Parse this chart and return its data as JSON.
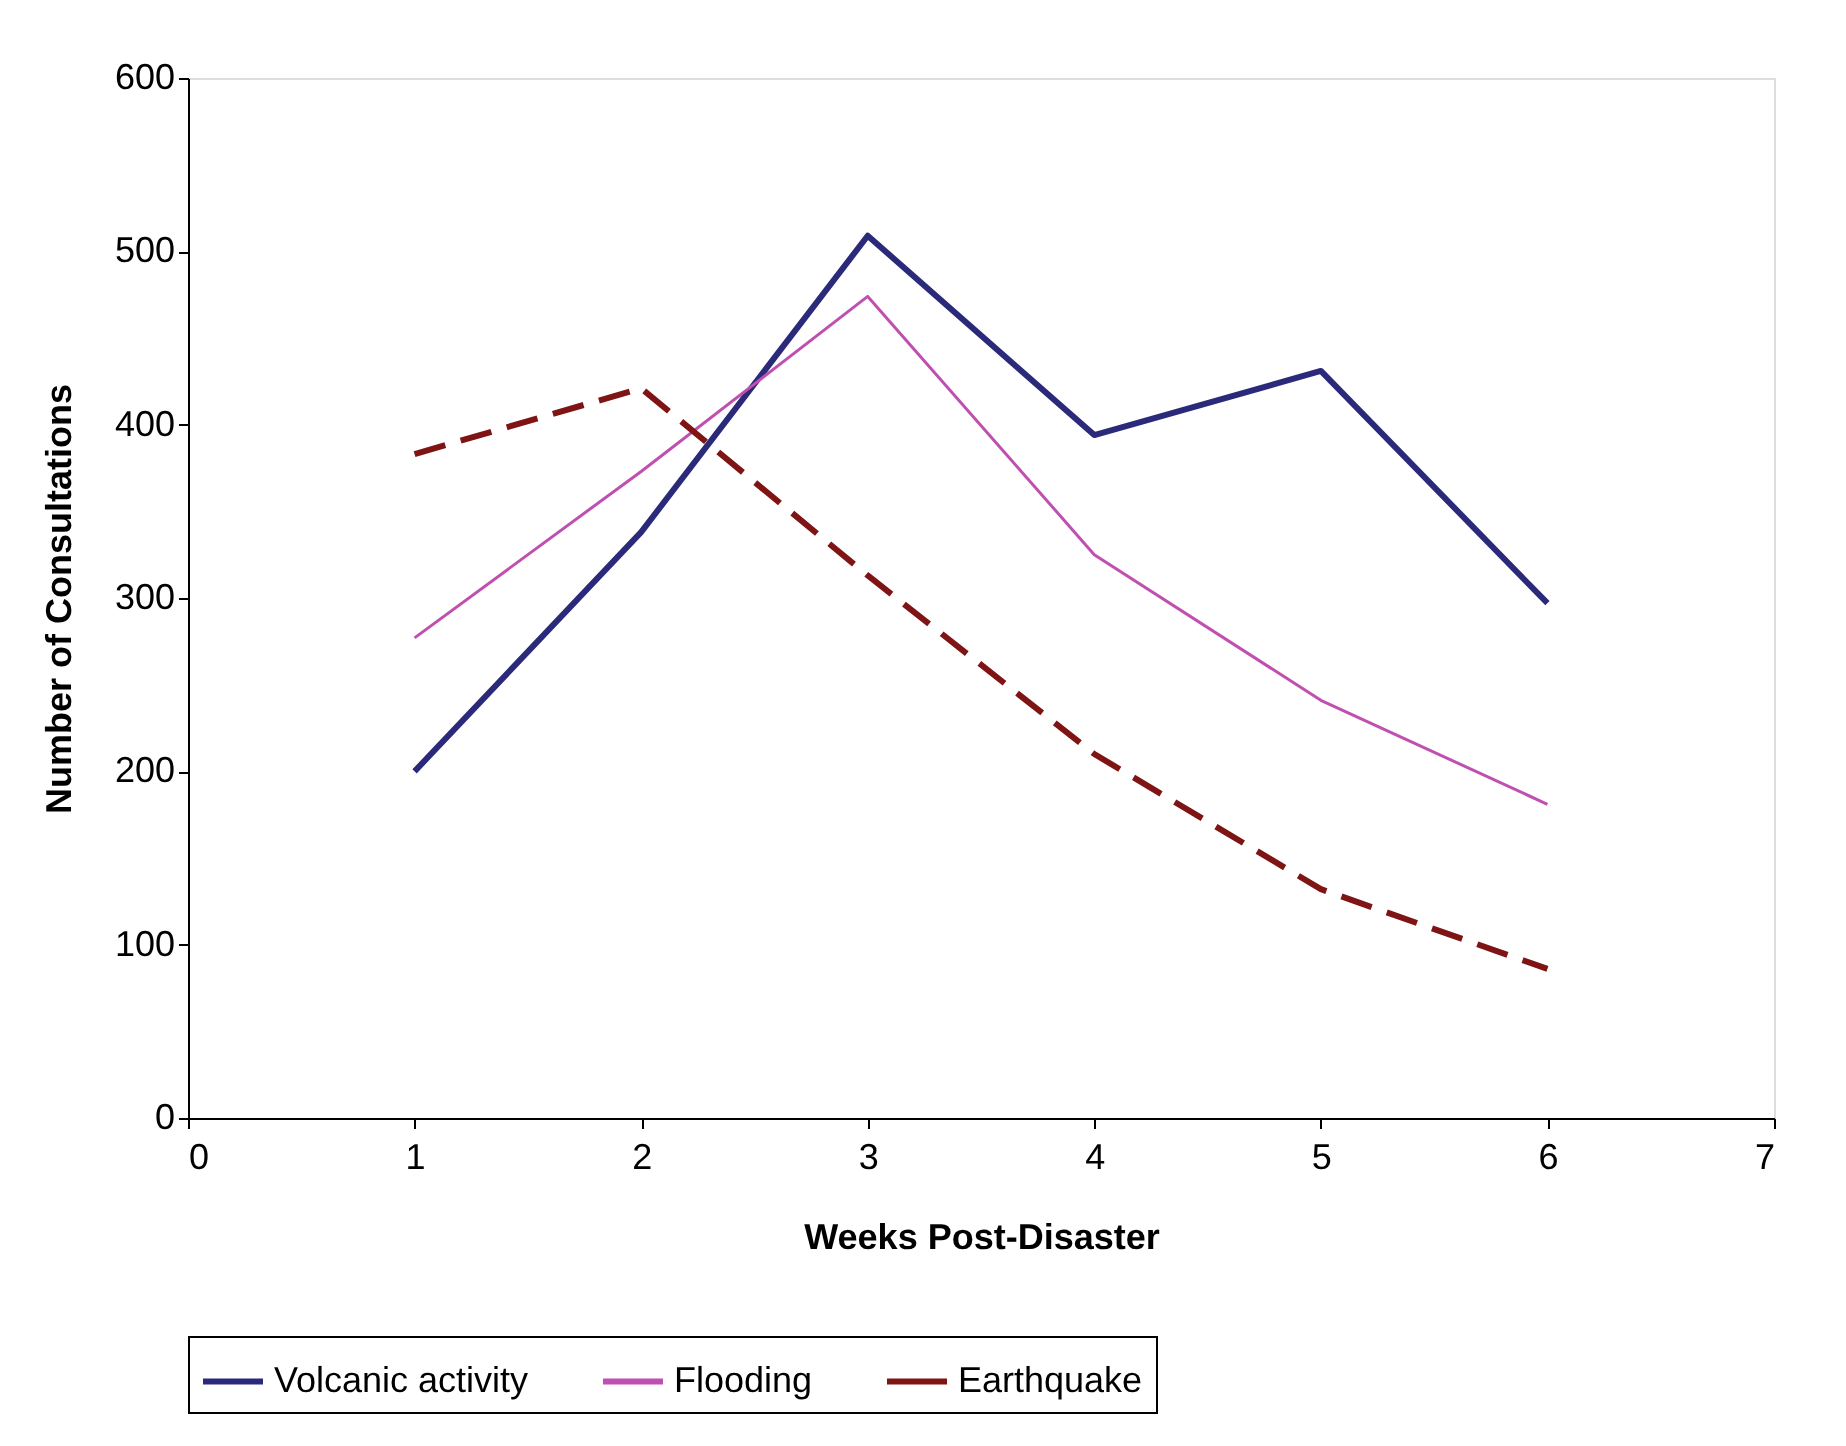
{
  "chart_data": {
    "type": "line",
    "xlabel": "Weeks Post-Disaster",
    "ylabel": "Number of Consultations",
    "x": [
      1,
      2,
      3,
      4,
      5,
      6
    ],
    "xlim": [
      0,
      7
    ],
    "xticks": [
      0,
      1,
      2,
      3,
      4,
      5,
      6,
      7
    ],
    "ylim": [
      0,
      600
    ],
    "yticks": [
      0,
      100,
      200,
      300,
      400,
      500,
      600
    ],
    "grid": false,
    "legend": "bottom",
    "marker": "none",
    "series": [
      {
        "name": "Volcanic activity",
        "color": "#2b2a7a",
        "line_style": "solid",
        "values": [
          200,
          338,
          509,
          394,
          431,
          297
        ]
      },
      {
        "name": "Flooding",
        "color": "#c050b0",
        "line_style": "solid",
        "values": [
          277,
          373,
          474,
          325,
          241,
          181
        ]
      },
      {
        "name": "Earthquake",
        "color": "#7f1414",
        "line_style": "dashed",
        "values": [
          383,
          421,
          313,
          210,
          132,
          86
        ]
      }
    ]
  }
}
